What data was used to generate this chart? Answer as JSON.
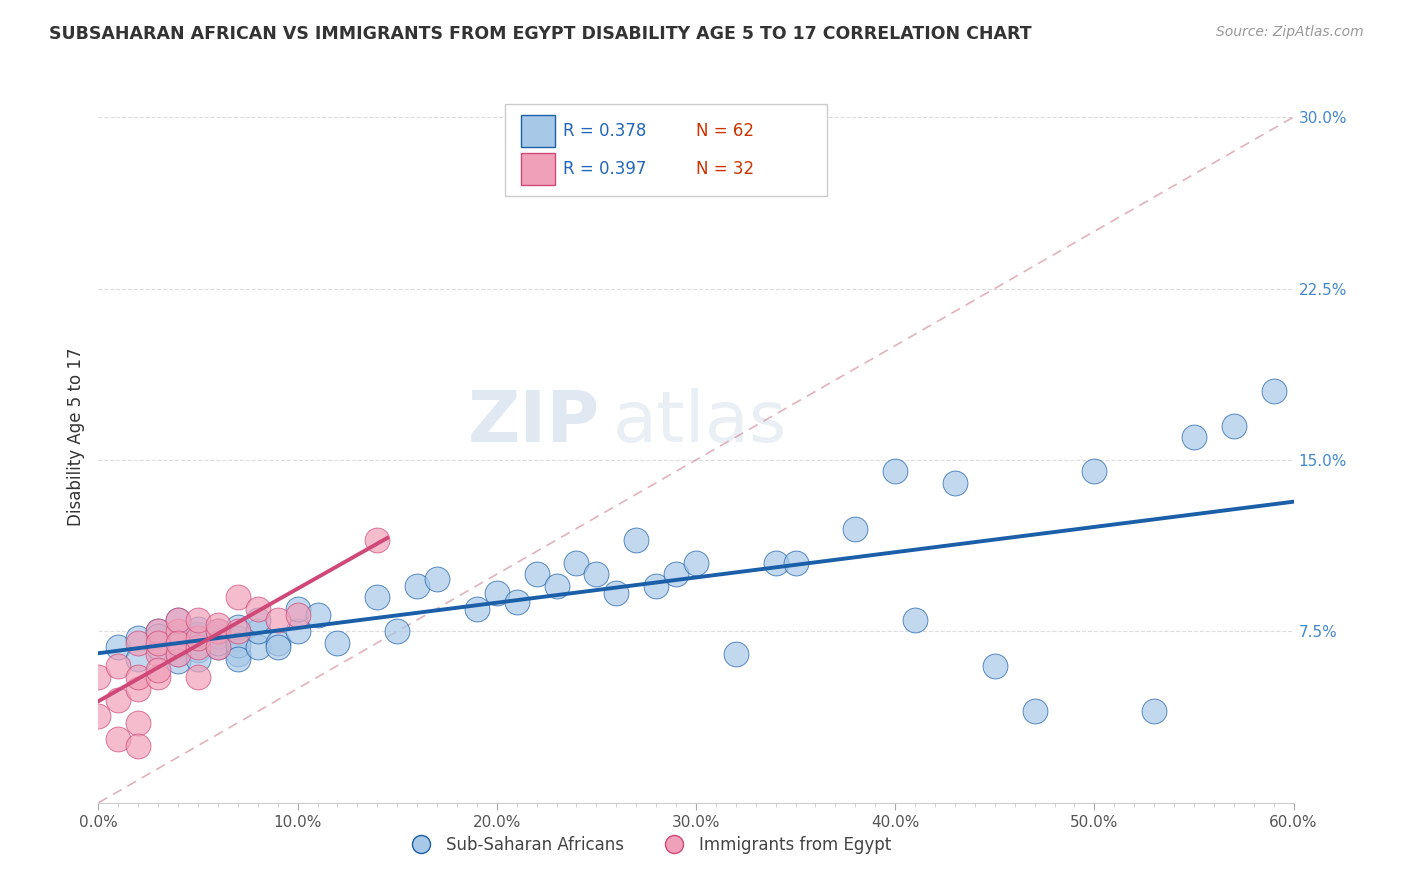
{
  "title": "SUBSAHARAN AFRICAN VS IMMIGRANTS FROM EGYPT DISABILITY AGE 5 TO 17 CORRELATION CHART",
  "source_text": "Source: ZipAtlas.com",
  "ylabel": "Disability Age 5 to 17",
  "xlim": [
    0.0,
    0.6
  ],
  "ylim": [
    0.0,
    0.32
  ],
  "xtick_labels": [
    "0.0%",
    "",
    "",
    "",
    "",
    "",
    "",
    "",
    "",
    "",
    "10.0%",
    "",
    "",
    "",
    "",
    "",
    "",
    "",
    "",
    "",
    "20.0%",
    "",
    "",
    "",
    "",
    "",
    "",
    "",
    "",
    "",
    "30.0%",
    "",
    "",
    "",
    "",
    "",
    "",
    "",
    "",
    "",
    "40.0%",
    "",
    "",
    "",
    "",
    "",
    "",
    "",
    "",
    "",
    "50.0%",
    "",
    "",
    "",
    "",
    "",
    "",
    "",
    "",
    "",
    "60.0%"
  ],
  "xtick_values": [
    0.0,
    0.01,
    0.02,
    0.03,
    0.04,
    0.05,
    0.06,
    0.07,
    0.08,
    0.09,
    0.1,
    0.11,
    0.12,
    0.13,
    0.14,
    0.15,
    0.16,
    0.17,
    0.18,
    0.19,
    0.2,
    0.21,
    0.22,
    0.23,
    0.24,
    0.25,
    0.26,
    0.27,
    0.28,
    0.29,
    0.3,
    0.31,
    0.32,
    0.33,
    0.34,
    0.35,
    0.36,
    0.37,
    0.38,
    0.39,
    0.4,
    0.41,
    0.42,
    0.43,
    0.44,
    0.45,
    0.46,
    0.47,
    0.48,
    0.49,
    0.5,
    0.51,
    0.52,
    0.53,
    0.54,
    0.55,
    0.56,
    0.57,
    0.58,
    0.59,
    0.6
  ],
  "ytick_labels": [
    "7.5%",
    "15.0%",
    "22.5%",
    "30.0%"
  ],
  "ytick_values": [
    0.075,
    0.15,
    0.225,
    0.3
  ],
  "legend_labels": [
    "Sub-Saharan Africans",
    "Immigrants from Egypt"
  ],
  "R_blue": 0.378,
  "N_blue": 62,
  "R_pink": 0.397,
  "N_pink": 32,
  "color_blue": "#A8C8E8",
  "color_pink": "#F0A0B8",
  "trendline_blue": "#1A5FA8",
  "trendline_pink": "#D04878",
  "trendline_dash_color": "#D08090",
  "watermark_zip": "ZIP",
  "watermark_atlas": "atlas",
  "blue_scatter_x": [
    0.01,
    0.02,
    0.02,
    0.03,
    0.03,
    0.03,
    0.04,
    0.04,
    0.04,
    0.04,
    0.05,
    0.05,
    0.05,
    0.05,
    0.06,
    0.06,
    0.06,
    0.06,
    0.07,
    0.07,
    0.07,
    0.07,
    0.07,
    0.08,
    0.08,
    0.08,
    0.09,
    0.09,
    0.1,
    0.1,
    0.11,
    0.12,
    0.14,
    0.15,
    0.16,
    0.17,
    0.19,
    0.2,
    0.21,
    0.22,
    0.23,
    0.24,
    0.25,
    0.26,
    0.27,
    0.28,
    0.29,
    0.3,
    0.32,
    0.34,
    0.35,
    0.38,
    0.4,
    0.41,
    0.43,
    0.45,
    0.47,
    0.5,
    0.53,
    0.55,
    0.57,
    0.59
  ],
  "blue_scatter_y": [
    0.068,
    0.072,
    0.063,
    0.075,
    0.068,
    0.073,
    0.065,
    0.08,
    0.069,
    0.062,
    0.067,
    0.074,
    0.076,
    0.063,
    0.068,
    0.073,
    0.075,
    0.07,
    0.065,
    0.072,
    0.077,
    0.069,
    0.063,
    0.068,
    0.075,
    0.08,
    0.07,
    0.068,
    0.075,
    0.085,
    0.082,
    0.07,
    0.09,
    0.075,
    0.095,
    0.098,
    0.085,
    0.092,
    0.088,
    0.1,
    0.095,
    0.105,
    0.1,
    0.092,
    0.115,
    0.095,
    0.1,
    0.105,
    0.065,
    0.105,
    0.105,
    0.12,
    0.145,
    0.08,
    0.14,
    0.06,
    0.04,
    0.145,
    0.04,
    0.16,
    0.165,
    0.18
  ],
  "pink_scatter_x": [
    0.0,
    0.0,
    0.01,
    0.01,
    0.01,
    0.02,
    0.02,
    0.02,
    0.02,
    0.02,
    0.03,
    0.03,
    0.03,
    0.03,
    0.03,
    0.04,
    0.04,
    0.04,
    0.04,
    0.05,
    0.05,
    0.05,
    0.05,
    0.06,
    0.06,
    0.06,
    0.07,
    0.07,
    0.08,
    0.09,
    0.1,
    0.14
  ],
  "pink_scatter_y": [
    0.055,
    0.038,
    0.06,
    0.045,
    0.028,
    0.05,
    0.07,
    0.055,
    0.035,
    0.025,
    0.065,
    0.075,
    0.055,
    0.07,
    0.058,
    0.075,
    0.065,
    0.08,
    0.07,
    0.068,
    0.072,
    0.055,
    0.08,
    0.075,
    0.078,
    0.068,
    0.075,
    0.09,
    0.085,
    0.08,
    0.082,
    0.115
  ]
}
